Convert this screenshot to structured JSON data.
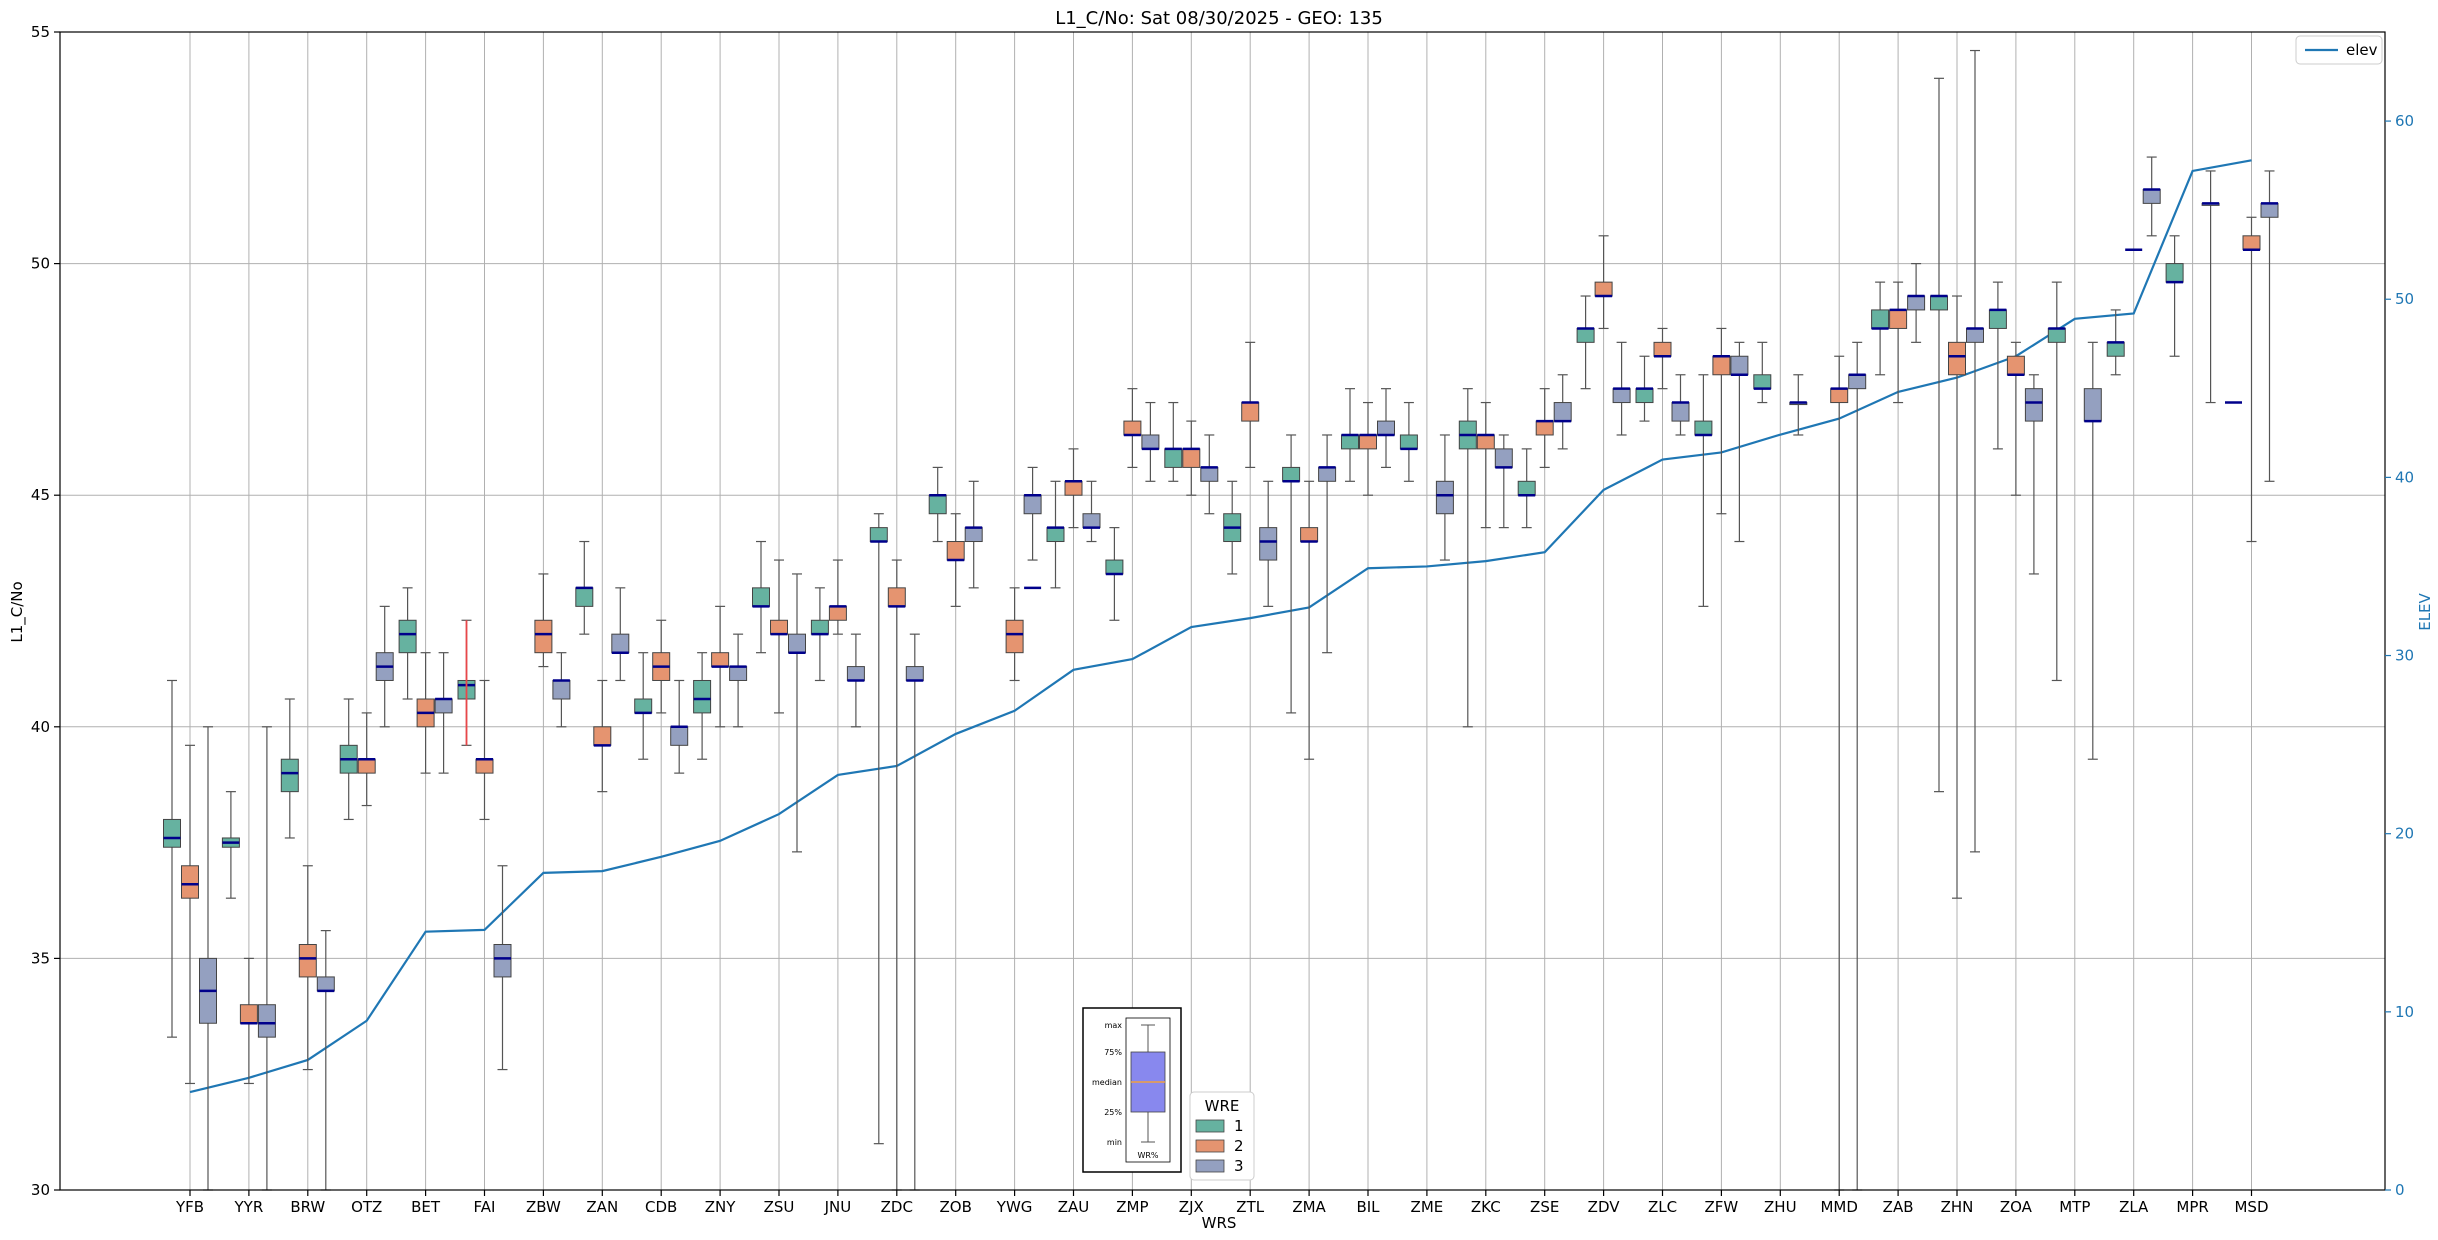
{
  "chart_data": {
    "type": "box",
    "title": "L1_C/No: Sat 08/30/2025 - GEO: 135",
    "xlabel": "WRS",
    "ylabel": "L1_C/No",
    "ylabel_right": "ELEV",
    "ylim": [
      30,
      55
    ],
    "ylim_right": [
      0,
      65
    ],
    "yticks": [
      30,
      35,
      40,
      45,
      50,
      55
    ],
    "yticks_right": [
      0,
      10,
      20,
      30,
      40,
      50,
      60
    ],
    "grid": true,
    "categories": [
      "YFB",
      "YYR",
      "BRW",
      "OTZ",
      "BET",
      "FAI",
      "ZBW",
      "ZAN",
      "CDB",
      "ZNY",
      "ZSU",
      "JNU",
      "ZDC",
      "ZOB",
      "YWG",
      "ZAU",
      "ZMP",
      "ZJX",
      "ZTL",
      "ZMA",
      "BIL",
      "ZME",
      "ZKC",
      "ZSE",
      "ZDV",
      "ZLC",
      "ZFW",
      "ZHU",
      "MMD",
      "ZAB",
      "ZHN",
      "ZOA",
      "MTP",
      "ZLA",
      "MPR",
      "MSD"
    ],
    "wre_legend": {
      "title": "WRE",
      "labels": [
        "1",
        "2",
        "3"
      ],
      "colors": [
        "#66b2a0",
        "#e59470",
        "#94a0c0"
      ]
    },
    "elev_legend": {
      "label": "elev",
      "color": "#1f77b4"
    },
    "key_box": {
      "labels": [
        "max",
        "75%",
        "median",
        "25%",
        "min"
      ],
      "xlabel": "WR%"
    },
    "box_note": "each box: [min, q1, median, q3, max] in dB-Hz; null = WRE not shown",
    "series": [
      {
        "name": "1",
        "boxes": [
          [
            33.3,
            37.4,
            37.6,
            38.0,
            41.0
          ],
          [
            36.3,
            37.4,
            37.5,
            37.6,
            38.6
          ],
          [
            37.6,
            38.6,
            39.0,
            39.3,
            40.6
          ],
          [
            38.0,
            39.0,
            39.3,
            39.6,
            40.6
          ],
          [
            40.6,
            41.6,
            42.0,
            42.3,
            43.0
          ],
          [
            39.6,
            40.6,
            40.9,
            41.0,
            42.3
          ],
          [
            null,
            null,
            null,
            null,
            null
          ],
          [
            42.0,
            42.6,
            43.0,
            43.0,
            44.0
          ],
          [
            39.3,
            40.3,
            40.3,
            40.6,
            41.6
          ],
          [
            39.3,
            40.3,
            40.6,
            41.0,
            41.6
          ],
          [
            41.6,
            42.6,
            42.6,
            43.0,
            44.0
          ],
          [
            41.0,
            42.0,
            42.0,
            42.3,
            43.0
          ],
          [
            31.0,
            44.0,
            44.0,
            44.3,
            44.6
          ],
          [
            44.0,
            44.6,
            45.0,
            45.0,
            45.6
          ],
          [
            null,
            null,
            null,
            null,
            null
          ],
          [
            43.0,
            44.0,
            44.3,
            44.3,
            45.3
          ],
          [
            42.3,
            43.3,
            43.3,
            43.6,
            44.3
          ],
          [
            45.3,
            45.6,
            46.0,
            46.0,
            47.0
          ],
          [
            43.3,
            44.0,
            44.3,
            44.6,
            45.3
          ],
          [
            40.3,
            45.3,
            45.3,
            45.6,
            46.3
          ],
          [
            45.3,
            46.0,
            46.3,
            46.3,
            47.3
          ],
          [
            45.3,
            46.0,
            46.0,
            46.3,
            47.0
          ],
          [
            40.0,
            46.0,
            46.3,
            46.6,
            47.3
          ],
          [
            44.3,
            45.0,
            45.0,
            45.3,
            46.0
          ],
          [
            47.3,
            48.3,
            48.6,
            48.6,
            49.3
          ],
          [
            46.6,
            47.0,
            47.3,
            47.3,
            48.0
          ],
          [
            42.6,
            46.3,
            46.3,
            46.6,
            47.6
          ],
          [
            47.0,
            47.3,
            47.3,
            47.6,
            48.3
          ],
          [
            null,
            null,
            null,
            null,
            null
          ],
          [
            47.6,
            48.6,
            48.6,
            49.0,
            49.6
          ],
          [
            38.6,
            49.0,
            49.3,
            49.3,
            54.0
          ],
          [
            46.0,
            48.6,
            49.0,
            49.0,
            49.6
          ],
          [
            41.0,
            48.3,
            48.6,
            48.6,
            49.6
          ],
          [
            47.6,
            48.0,
            48.3,
            48.3,
            49.0
          ],
          [
            48.0,
            49.6,
            49.6,
            50.0,
            50.6
          ],
          [
            null,
            null,
            null,
            null,
            null
          ]
        ]
      },
      {
        "name": "2",
        "boxes": [
          [
            32.3,
            36.3,
            36.6,
            37.0,
            39.6
          ],
          [
            32.3,
            33.6,
            33.6,
            34.0,
            35.0
          ],
          [
            32.6,
            34.6,
            35.0,
            35.3,
            37.0
          ],
          [
            38.3,
            39.0,
            39.3,
            39.3,
            40.3
          ],
          [
            39.0,
            40.0,
            40.3,
            40.6,
            41.6
          ],
          [
            38.0,
            39.0,
            39.3,
            39.3,
            41.0
          ],
          [
            41.3,
            41.6,
            42.0,
            42.3,
            43.3
          ],
          [
            38.6,
            39.6,
            39.6,
            40.0,
            41.0
          ],
          [
            40.3,
            41.0,
            41.3,
            41.6,
            42.3
          ],
          [
            40.0,
            41.3,
            41.3,
            41.6,
            42.6
          ],
          [
            40.3,
            42.0,
            42.0,
            42.3,
            43.6
          ],
          [
            42.0,
            42.3,
            42.6,
            42.6,
            43.6
          ],
          [
            30.0,
            42.6,
            42.6,
            43.0,
            43.6
          ],
          [
            42.6,
            43.6,
            43.6,
            44.0,
            44.6
          ],
          [
            41.0,
            41.6,
            42.0,
            42.3,
            43.0
          ],
          [
            44.3,
            45.0,
            45.3,
            45.3,
            46.0
          ],
          [
            45.6,
            46.3,
            46.3,
            46.6,
            47.3
          ],
          [
            45.0,
            45.6,
            46.0,
            46.0,
            46.6
          ],
          [
            45.6,
            46.6,
            47.0,
            47.0,
            48.3
          ],
          [
            39.3,
            44.0,
            44.0,
            44.3,
            45.3
          ],
          [
            45.0,
            46.0,
            46.3,
            46.3,
            47.0
          ],
          [
            null,
            null,
            null,
            null,
            null
          ],
          [
            44.3,
            46.0,
            46.3,
            46.3,
            47.0
          ],
          [
            45.6,
            46.3,
            46.6,
            46.6,
            47.3
          ],
          [
            48.6,
            49.3,
            49.3,
            49.6,
            50.6
          ],
          [
            47.3,
            48.0,
            48.0,
            48.3,
            48.6
          ],
          [
            44.6,
            47.6,
            48.0,
            48.0,
            48.6
          ],
          [
            null,
            null,
            null,
            null,
            null
          ],
          [
            30.0,
            47.0,
            47.3,
            47.3,
            48.0
          ],
          [
            47.0,
            48.6,
            49.0,
            49.0,
            49.6
          ],
          [
            36.3,
            47.6,
            48.0,
            48.3,
            49.3
          ],
          [
            45.0,
            47.6,
            47.6,
            48.0,
            48.3
          ],
          [
            null,
            null,
            null,
            null,
            null
          ],
          [
            null,
            null,
            null,
            null,
            null
          ],
          [
            null,
            null,
            null,
            null,
            null
          ],
          [
            44.0,
            50.3,
            50.3,
            50.6,
            51.0
          ]
        ]
      },
      {
        "name": "3",
        "boxes": [
          [
            30.0,
            33.6,
            34.3,
            35.0,
            40.0
          ],
          [
            30.0,
            33.3,
            33.6,
            34.0,
            40.0
          ],
          [
            30.0,
            34.3,
            34.3,
            34.6,
            35.6
          ],
          [
            40.0,
            41.0,
            41.3,
            41.6,
            42.6
          ],
          [
            39.0,
            40.3,
            40.6,
            40.6,
            41.6
          ],
          [
            32.6,
            34.6,
            35.0,
            35.3,
            37.0
          ],
          [
            40.0,
            40.6,
            41.0,
            41.0,
            41.6
          ],
          [
            41.0,
            41.6,
            41.6,
            42.0,
            43.0
          ],
          [
            39.0,
            39.6,
            40.0,
            40.0,
            41.0
          ],
          [
            40.0,
            41.0,
            41.3,
            41.3,
            42.0
          ],
          [
            37.3,
            41.6,
            41.6,
            42.0,
            43.3
          ],
          [
            40.0,
            41.0,
            41.0,
            41.3,
            42.0
          ],
          [
            30.0,
            41.0,
            41.0,
            41.3,
            42.0
          ],
          [
            43.0,
            44.0,
            44.3,
            44.3,
            45.3
          ],
          [
            43.6,
            44.6,
            45.0,
            45.0,
            45.6
          ],
          [
            44.0,
            44.3,
            44.3,
            44.6,
            45.3
          ],
          [
            45.3,
            46.0,
            46.0,
            46.3,
            47.0
          ],
          [
            44.6,
            45.3,
            45.6,
            45.6,
            46.3
          ],
          [
            42.6,
            43.6,
            44.0,
            44.3,
            45.3
          ],
          [
            41.6,
            45.3,
            45.6,
            45.6,
            46.3
          ],
          [
            45.6,
            46.3,
            46.3,
            46.6,
            47.3
          ],
          [
            43.6,
            44.6,
            45.0,
            45.3,
            46.3
          ],
          [
            44.3,
            45.6,
            45.6,
            46.0,
            46.3
          ],
          [
            46.0,
            46.6,
            46.6,
            47.0,
            47.6
          ],
          [
            46.3,
            47.0,
            47.3,
            47.3,
            48.3
          ],
          [
            46.3,
            46.6,
            47.0,
            47.0,
            47.6
          ],
          [
            44.0,
            47.6,
            47.6,
            48.0,
            48.3
          ],
          [
            46.3,
            47.0,
            47.0,
            47.0,
            47.6
          ],
          [
            30.0,
            47.3,
            47.6,
            47.6,
            48.3
          ],
          [
            48.3,
            49.0,
            49.3,
            49.3,
            50.0
          ],
          [
            37.3,
            48.3,
            48.6,
            48.6,
            54.6
          ],
          [
            43.3,
            46.6,
            47.0,
            47.3,
            47.6
          ],
          [
            39.3,
            46.6,
            46.6,
            47.3,
            48.3
          ],
          [
            50.6,
            51.3,
            51.6,
            51.6,
            52.3
          ],
          [
            47.0,
            51.3,
            51.3,
            51.3,
            52.0
          ],
          [
            45.3,
            51.0,
            51.3,
            51.3,
            52.0
          ]
        ]
      }
    ],
    "single_median_marks": [
      {
        "station": "YWG",
        "wre": "3",
        "value": 43.0
      },
      {
        "station": "ZLA",
        "wre": "2",
        "value": 50.3
      },
      {
        "station": "MSD",
        "wre": "1",
        "value": 47.0
      }
    ],
    "outlier_whisker": {
      "station": "FAI",
      "wre": "1",
      "color": "#e8474a",
      "range": [
        39.6,
        42.3
      ]
    },
    "elev": [
      5.5,
      6.3,
      7.3,
      9.5,
      14.5,
      14.6,
      17.8,
      17.9,
      18.7,
      19.6,
      21.1,
      23.3,
      23.8,
      25.6,
      26.9,
      29.2,
      29.8,
      31.6,
      32.1,
      32.7,
      34.9,
      35.0,
      35.3,
      35.8,
      39.3,
      41.0,
      41.4,
      42.4,
      43.3,
      44.8,
      45.6,
      46.8,
      48.9,
      49.2,
      57.2,
      57.8
    ]
  }
}
